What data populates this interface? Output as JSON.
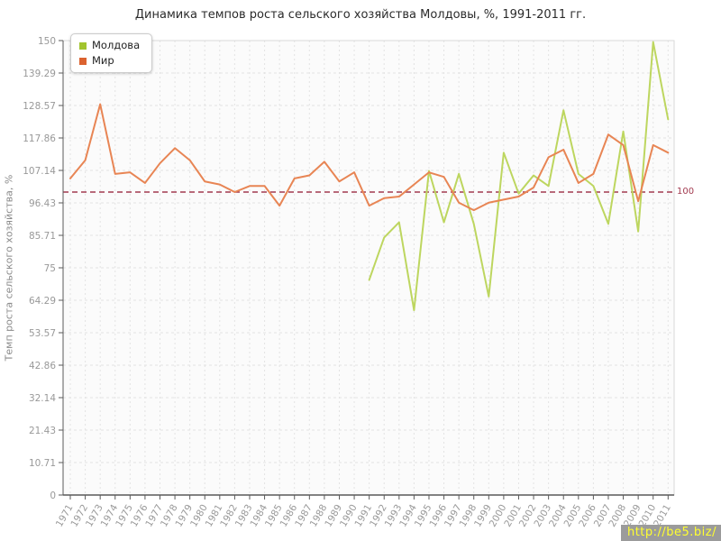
{
  "title": "Динамика темпов роста сельского хозяйства Молдовы, %, 1991-2011 гг.",
  "watermark": "http://be5.biz/",
  "legend": {
    "items": [
      {
        "key": "moldova",
        "label": "Молдова",
        "color": "#a2c42e"
      },
      {
        "key": "world",
        "label": "Мир",
        "color": "#db622f"
      }
    ]
  },
  "reference_line": {
    "value": 100,
    "label": "100",
    "color": "#a23b50"
  },
  "axes": {
    "y_label": "Темп роста сельского хозяйства, %",
    "y_tick_labels": [
      "0",
      "10.71",
      "21.43",
      "32.14",
      "42.86",
      "53.57",
      "64.29",
      "75",
      "85.71",
      "96.43",
      "107.14",
      "117.86",
      "128.57",
      "139.29",
      "150"
    ]
  },
  "colors": {
    "plot_bg": "#fbfbfb",
    "plot_border": "#d9d9d9",
    "grid": "#e3e3e3",
    "axis": "#5a5a5a",
    "tick_text": "#999999",
    "watermark_bg": "#9b9b9b",
    "watermark_text": "#ffff2f"
  },
  "chart_data": {
    "type": "line",
    "title": "Динамика темпов роста сельского хозяйства Молдовы, %, 1991-2011 гг.",
    "xlabel": "",
    "ylabel": "Темп роста сельского хозяйства, %",
    "ylim": [
      0,
      150
    ],
    "grid": true,
    "legend_position": "top-left",
    "reference_line": 100,
    "x": [
      1971,
      1972,
      1973,
      1974,
      1975,
      1976,
      1977,
      1978,
      1979,
      1980,
      1981,
      1982,
      1983,
      1984,
      1985,
      1986,
      1987,
      1988,
      1989,
      1990,
      1991,
      1992,
      1993,
      1994,
      1995,
      1996,
      1997,
      1998,
      1999,
      2000,
      2001,
      2002,
      2003,
      2004,
      2005,
      2006,
      2007,
      2008,
      2009,
      2010,
      2011
    ],
    "series": [
      {
        "name": "Молдова",
        "key": "moldova",
        "color": "#bdd65f",
        "values": [
          null,
          null,
          null,
          null,
          null,
          null,
          null,
          null,
          null,
          null,
          null,
          null,
          null,
          null,
          null,
          null,
          null,
          null,
          null,
          null,
          71,
          85,
          90,
          61,
          107,
          90,
          106,
          89.5,
          65.5,
          113,
          99.5,
          105.5,
          102,
          127,
          106,
          102,
          89.5,
          120,
          87,
          149.5,
          124
        ]
      },
      {
        "name": "Мир",
        "key": "world",
        "color": "#e88554",
        "values": [
          104.5,
          110.5,
          129,
          106,
          106.5,
          103,
          109.5,
          114.5,
          110.5,
          103.5,
          102.5,
          100,
          102,
          102,
          95.5,
          104.5,
          105.5,
          110,
          103.5,
          106.5,
          95.5,
          98,
          98.5,
          102.5,
          106.5,
          105,
          96.5,
          94,
          96.5,
          97.5,
          98.5,
          101.5,
          111.5,
          114,
          103,
          106,
          119,
          115.5,
          97,
          115.5,
          113
        ]
      }
    ]
  }
}
